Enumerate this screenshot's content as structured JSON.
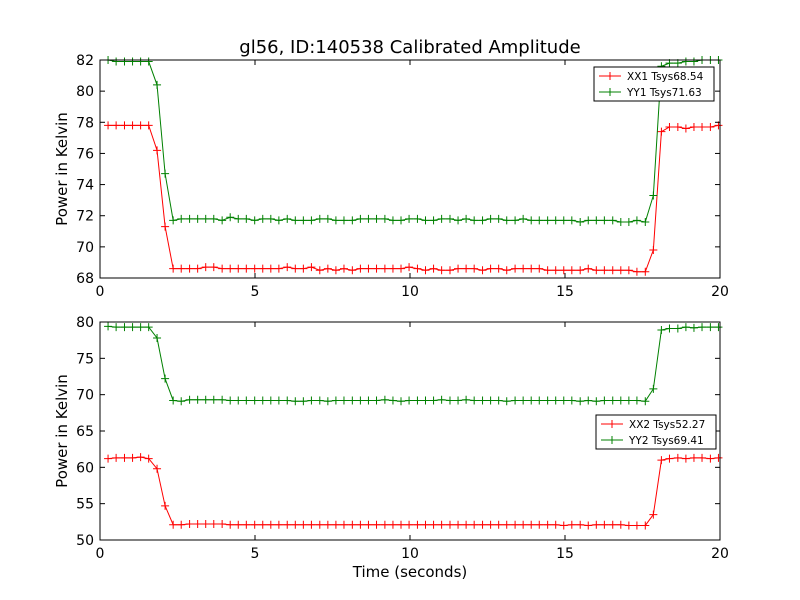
{
  "title": "gl56, ID:140538 Calibrated Amplitude",
  "colors": {
    "xx": "#ff0000",
    "yy": "#008000"
  },
  "chart_data": [
    {
      "type": "line",
      "xlabel": "",
      "ylabel": "Power in Kelvin",
      "xlim": [
        0,
        20
      ],
      "ylim": [
        68,
        82
      ],
      "xticks": [
        "0",
        "5",
        "10",
        "15",
        "20"
      ],
      "yticks": [
        "68",
        "70",
        "72",
        "74",
        "76",
        "78",
        "80",
        "82"
      ],
      "grid": false,
      "legend_position": "top-right",
      "x": [
        0.26,
        0.52,
        0.79,
        1.05,
        1.31,
        1.57,
        1.84,
        2.1,
        2.36,
        2.62,
        2.89,
        3.15,
        3.41,
        3.67,
        3.94,
        4.2,
        4.46,
        4.72,
        4.99,
        5.25,
        5.51,
        5.77,
        6.04,
        6.3,
        6.56,
        6.82,
        7.09,
        7.35,
        7.61,
        7.87,
        8.14,
        8.4,
        8.66,
        8.92,
        9.19,
        9.45,
        9.71,
        9.97,
        10.24,
        10.5,
        10.76,
        11.02,
        11.29,
        11.55,
        11.81,
        12.07,
        12.34,
        12.6,
        12.86,
        13.12,
        13.39,
        13.65,
        13.91,
        14.17,
        14.44,
        14.7,
        14.96,
        15.22,
        15.49,
        15.75,
        16.01,
        16.27,
        16.54,
        16.8,
        17.06,
        17.32,
        17.59,
        17.85,
        18.11,
        18.37,
        18.64,
        18.9,
        19.16,
        19.42,
        19.69,
        19.95
      ],
      "series": [
        {
          "name": "XX1 Tsys68.54",
          "color": "#ff0000",
          "values": [
            77.8,
            77.8,
            77.8,
            77.8,
            77.8,
            77.8,
            76.2,
            71.3,
            68.6,
            68.6,
            68.6,
            68.6,
            68.7,
            68.7,
            68.6,
            68.6,
            68.6,
            68.6,
            68.6,
            68.6,
            68.6,
            68.6,
            68.7,
            68.6,
            68.6,
            68.7,
            68.5,
            68.6,
            68.5,
            68.6,
            68.5,
            68.6,
            68.6,
            68.6,
            68.6,
            68.6,
            68.6,
            68.7,
            68.6,
            68.5,
            68.6,
            68.5,
            68.5,
            68.6,
            68.6,
            68.6,
            68.5,
            68.6,
            68.6,
            68.5,
            68.6,
            68.6,
            68.6,
            68.6,
            68.5,
            68.5,
            68.5,
            68.5,
            68.5,
            68.6,
            68.5,
            68.5,
            68.5,
            68.5,
            68.5,
            68.4,
            68.4,
            69.8,
            77.4,
            77.7,
            77.7,
            77.6,
            77.7,
            77.7,
            77.7,
            77.8
          ]
        },
        {
          "name": "YY1 Tsys71.63",
          "color": "#008000",
          "values": [
            82.0,
            81.9,
            81.9,
            81.9,
            81.9,
            81.9,
            80.4,
            74.7,
            71.7,
            71.8,
            71.8,
            71.8,
            71.8,
            71.8,
            71.7,
            71.9,
            71.8,
            71.8,
            71.7,
            71.8,
            71.8,
            71.7,
            71.8,
            71.7,
            71.7,
            71.7,
            71.8,
            71.8,
            71.7,
            71.7,
            71.7,
            71.8,
            71.8,
            71.8,
            71.8,
            71.7,
            71.7,
            71.8,
            71.8,
            71.7,
            71.7,
            71.8,
            71.8,
            71.7,
            71.8,
            71.7,
            71.7,
            71.8,
            71.8,
            71.7,
            71.7,
            71.8,
            71.7,
            71.7,
            71.7,
            71.7,
            71.7,
            71.7,
            71.6,
            71.7,
            71.7,
            71.7,
            71.7,
            71.6,
            71.6,
            71.7,
            71.6,
            73.3,
            81.6,
            81.8,
            81.8,
            81.9,
            81.9,
            82.0,
            82.0,
            82.0
          ]
        }
      ]
    },
    {
      "type": "line",
      "xlabel": "Time (seconds)",
      "ylabel": "Power in Kelvin",
      "xlim": [
        0,
        20
      ],
      "ylim": [
        50,
        80
      ],
      "xticks": [
        "0",
        "5",
        "10",
        "15",
        "20"
      ],
      "yticks": [
        "50",
        "55",
        "60",
        "65",
        "70",
        "75",
        "80"
      ],
      "grid": false,
      "legend_position": "center-right",
      "x": [
        0.26,
        0.52,
        0.79,
        1.05,
        1.31,
        1.57,
        1.84,
        2.1,
        2.36,
        2.62,
        2.89,
        3.15,
        3.41,
        3.67,
        3.94,
        4.2,
        4.46,
        4.72,
        4.99,
        5.25,
        5.51,
        5.77,
        6.04,
        6.3,
        6.56,
        6.82,
        7.09,
        7.35,
        7.61,
        7.87,
        8.14,
        8.4,
        8.66,
        8.92,
        9.19,
        9.45,
        9.71,
        9.97,
        10.24,
        10.5,
        10.76,
        11.02,
        11.29,
        11.55,
        11.81,
        12.07,
        12.34,
        12.6,
        12.86,
        13.12,
        13.39,
        13.65,
        13.91,
        14.17,
        14.44,
        14.7,
        14.96,
        15.22,
        15.49,
        15.75,
        16.01,
        16.27,
        16.54,
        16.8,
        17.06,
        17.32,
        17.59,
        17.85,
        18.11,
        18.37,
        18.64,
        18.9,
        19.16,
        19.42,
        19.69,
        19.95
      ],
      "series": [
        {
          "name": "XX2 Tsys52.27",
          "color": "#ff0000",
          "values": [
            61.2,
            61.3,
            61.3,
            61.3,
            61.4,
            61.2,
            59.8,
            54.7,
            52.1,
            52.1,
            52.2,
            52.2,
            52.2,
            52.2,
            52.2,
            52.1,
            52.1,
            52.1,
            52.1,
            52.1,
            52.1,
            52.1,
            52.1,
            52.1,
            52.1,
            52.1,
            52.1,
            52.1,
            52.1,
            52.1,
            52.1,
            52.1,
            52.1,
            52.1,
            52.1,
            52.1,
            52.1,
            52.1,
            52.1,
            52.1,
            52.1,
            52.1,
            52.1,
            52.1,
            52.1,
            52.1,
            52.1,
            52.1,
            52.1,
            52.1,
            52.1,
            52.1,
            52.1,
            52.1,
            52.1,
            52.1,
            52.0,
            52.1,
            52.1,
            52.0,
            52.1,
            52.1,
            52.1,
            52.1,
            52.0,
            52.0,
            52.0,
            53.5,
            61.0,
            61.2,
            61.3,
            61.2,
            61.3,
            61.3,
            61.2,
            61.3
          ]
        },
        {
          "name": "YY2 Tsys69.41",
          "color": "#008000",
          "values": [
            79.4,
            79.3,
            79.3,
            79.3,
            79.3,
            79.3,
            77.8,
            72.2,
            69.2,
            69.1,
            69.3,
            69.3,
            69.3,
            69.3,
            69.3,
            69.2,
            69.2,
            69.2,
            69.2,
            69.2,
            69.2,
            69.2,
            69.2,
            69.1,
            69.1,
            69.2,
            69.2,
            69.1,
            69.2,
            69.2,
            69.2,
            69.2,
            69.2,
            69.2,
            69.3,
            69.2,
            69.1,
            69.2,
            69.2,
            69.2,
            69.2,
            69.3,
            69.2,
            69.2,
            69.3,
            69.2,
            69.2,
            69.2,
            69.2,
            69.1,
            69.2,
            69.2,
            69.2,
            69.2,
            69.2,
            69.2,
            69.2,
            69.2,
            69.1,
            69.2,
            69.1,
            69.2,
            69.2,
            69.2,
            69.2,
            69.2,
            69.1,
            70.8,
            78.9,
            79.1,
            79.1,
            79.3,
            79.2,
            79.3,
            79.3,
            79.3
          ]
        }
      ]
    }
  ]
}
